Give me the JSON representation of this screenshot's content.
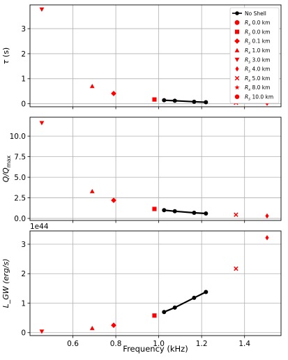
{
  "chart_data": {
    "type": "scatter",
    "xlabel": "Frequency (kHz)",
    "xlim": [
      0.4,
      1.57
    ],
    "xticks": [
      0.6,
      0.8,
      1.0,
      1.2,
      1.4
    ],
    "xtick_labels": [
      "0.6",
      "0.8",
      "1.0",
      "1.2",
      "1.4"
    ],
    "grid": true,
    "legend_placement": "top-right",
    "colors": {
      "no_shell": "#000000",
      "shell": "#ff0000"
    },
    "legend": [
      {
        "label": "No Shell",
        "marker": "line-circle"
      },
      {
        "label": "$R_s$ 0.0 km",
        "marker": "circle"
      },
      {
        "label": "$R_s$ 0.0 km",
        "marker": "square"
      },
      {
        "label": "$R_s$ 0.1 km",
        "marker": "diamond"
      },
      {
        "label": "$R_s$ 1.0 km",
        "marker": "triangle-up"
      },
      {
        "label": "$R_s$ 3.0 km",
        "marker": "triangle-down"
      },
      {
        "label": "$R_s$ 4.0 km",
        "marker": "thin-diamond"
      },
      {
        "label": "$R_s$ 5.0 km",
        "marker": "x"
      },
      {
        "label": "$R_s$ 8.0 km",
        "marker": "star"
      },
      {
        "label": "$R_s$ 10.0 km",
        "marker": "octagon"
      }
    ],
    "panels": [
      {
        "ylabel": "τ (s)",
        "ylim": [
          -0.12,
          3.95
        ],
        "yticks": [
          0,
          1,
          2,
          3
        ],
        "ytick_labels": [
          "0",
          "1",
          "2",
          "3"
        ],
        "offset_text": "",
        "no_shell": {
          "x": [
            1.025,
            1.075,
            1.165,
            1.22
          ],
          "y": [
            0.14,
            0.12,
            0.08,
            0.06
          ]
        },
        "points": [
          {
            "x": 0.455,
            "y": 3.77,
            "marker": "triangle-down"
          },
          {
            "x": 0.69,
            "y": 0.7,
            "marker": "triangle-up"
          },
          {
            "x": 0.79,
            "y": 0.41,
            "marker": "diamond"
          },
          {
            "x": 0.98,
            "y": 0.17,
            "marker": "square"
          },
          {
            "x": 1.36,
            "y": 0.04,
            "marker": "x"
          },
          {
            "x": 1.505,
            "y": 0.02,
            "marker": "thin-diamond"
          }
        ]
      },
      {
        "ylabel": "Q/Q_max",
        "ylim": [
          -0.25,
          12.3
        ],
        "yticks": [
          0,
          2.5,
          5.0,
          7.5,
          10.0
        ],
        "ytick_labels": [
          "0.0",
          "2.5",
          "5.0",
          "7.5",
          "10.0"
        ],
        "offset_text": "",
        "no_shell": {
          "x": [
            1.025,
            1.075,
            1.165,
            1.22
          ],
          "y": [
            1.0,
            0.87,
            0.68,
            0.6
          ]
        },
        "points": [
          {
            "x": 0.455,
            "y": 11.6,
            "marker": "triangle-down"
          },
          {
            "x": 0.69,
            "y": 3.3,
            "marker": "triangle-up"
          },
          {
            "x": 0.79,
            "y": 2.2,
            "marker": "diamond"
          },
          {
            "x": 0.98,
            "y": 1.15,
            "marker": "square"
          },
          {
            "x": 1.36,
            "y": 0.45,
            "marker": "x"
          },
          {
            "x": 1.505,
            "y": 0.3,
            "marker": "thin-diamond"
          }
        ]
      },
      {
        "ylabel": "L_GW (erg/s)",
        "ylim": [
          -0.1,
          3.45
        ],
        "yticks": [
          0,
          1,
          2,
          3
        ],
        "ytick_labels": [
          "0",
          "1",
          "2",
          "3"
        ],
        "offset_text": "1e44",
        "no_shell": {
          "x": [
            1.025,
            1.075,
            1.165,
            1.22
          ],
          "y": [
            0.7,
            0.85,
            1.18,
            1.38
          ]
        },
        "points": [
          {
            "x": 0.455,
            "y": 0.04,
            "marker": "triangle-down"
          },
          {
            "x": 0.69,
            "y": 0.15,
            "marker": "triangle-up"
          },
          {
            "x": 0.79,
            "y": 0.25,
            "marker": "diamond"
          },
          {
            "x": 0.98,
            "y": 0.58,
            "marker": "square"
          },
          {
            "x": 1.36,
            "y": 2.17,
            "marker": "x"
          },
          {
            "x": 1.505,
            "y": 3.22,
            "marker": "thin-diamond"
          }
        ]
      }
    ]
  }
}
